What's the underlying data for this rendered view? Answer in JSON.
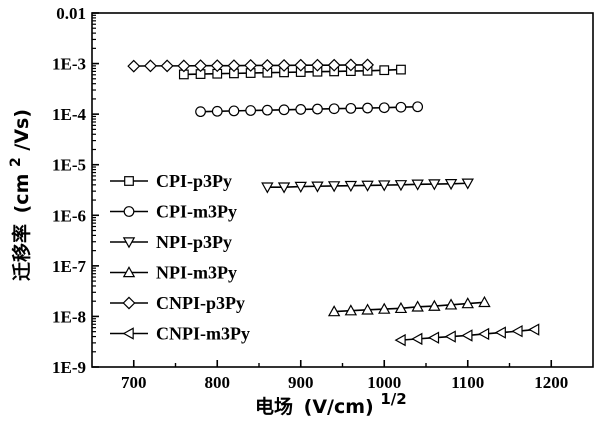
{
  "chart_data": {
    "type": "scatter",
    "title": "",
    "xlabel_prefix": "电场",
    "xlabel_units": "(V/cm)",
    "xlabel_exponent": "1/2",
    "ylabel_prefix": "迁移率",
    "ylabel_units": "(cm",
    "ylabel_exponent": "2",
    "ylabel_suffix": "/Vs)",
    "y_scale": "log",
    "xlim": [
      650,
      1250
    ],
    "ylim": [
      1e-09,
      0.01
    ],
    "x_ticks": [
      700,
      800,
      900,
      1000,
      1100,
      1200
    ],
    "x_tick_labels": [
      "700",
      "800",
      "900",
      "1000",
      "1100",
      "1200"
    ],
    "y_ticks": [
      1e-09,
      1e-08,
      1e-07,
      1e-06,
      1e-05,
      0.0001,
      0.001,
      0.01
    ],
    "y_tick_labels": [
      "1E-9",
      "1E-8",
      "1E-7",
      "1E-6",
      "1E-5",
      "1E-4",
      "1E-3",
      "0.01"
    ],
    "grid": false,
    "legend_position": "left",
    "series": [
      {
        "name": "CPI-p3Py",
        "marker": "square",
        "x": [
          760,
          780,
          800,
          820,
          840,
          860,
          880,
          900,
          920,
          940,
          960,
          980,
          1000,
          1020
        ],
        "y": [
          0.00061,
          0.00062,
          0.00063,
          0.00064,
          0.00065,
          0.00066,
          0.00067,
          0.00068,
          0.00069,
          0.0007,
          0.00071,
          0.00072,
          0.00074,
          0.00076
        ]
      },
      {
        "name": "CPI-m3Py",
        "marker": "circle",
        "x": [
          780,
          800,
          820,
          840,
          860,
          880,
          900,
          920,
          940,
          960,
          980,
          1000,
          1020,
          1040
        ],
        "y": [
          0.000112,
          0.000114,
          0.000116,
          0.000118,
          0.00012,
          0.000122,
          0.000124,
          0.000126,
          0.000128,
          0.00013,
          0.000132,
          0.000134,
          0.000137,
          0.00014
        ]
      },
      {
        "name": "NPI-p3Py",
        "marker": "triangle-down",
        "x": [
          860,
          880,
          900,
          920,
          940,
          960,
          980,
          1000,
          1020,
          1040,
          1060,
          1080,
          1100
        ],
        "y": [
          3.6e-06,
          3.6e-06,
          3.7e-06,
          3.75e-06,
          3.8e-06,
          3.85e-06,
          3.9e-06,
          3.95e-06,
          4e-06,
          4.1e-06,
          4.15e-06,
          4.2e-06,
          4.3e-06
        ]
      },
      {
        "name": "NPI-m3Py",
        "marker": "triangle-up",
        "x": [
          940,
          960,
          980,
          1000,
          1020,
          1040,
          1060,
          1080,
          1100,
          1120
        ],
        "y": [
          1.25e-08,
          1.3e-08,
          1.35e-08,
          1.4e-08,
          1.45e-08,
          1.55e-08,
          1.6e-08,
          1.7e-08,
          1.8e-08,
          1.9e-08
        ]
      },
      {
        "name": "CNPI-p3Py",
        "marker": "diamond",
        "x": [
          700,
          720,
          740,
          760,
          780,
          800,
          820,
          840,
          860,
          880,
          900,
          920,
          940,
          960,
          980
        ],
        "y": [
          0.00089,
          0.0009,
          0.0009,
          0.0009,
          0.00091,
          0.00091,
          0.00091,
          0.00092,
          0.00092,
          0.00092,
          0.00093,
          0.00093,
          0.00093,
          0.00094,
          0.00094
        ]
      },
      {
        "name": "CNPI-m3Py",
        "marker": "triangle-left",
        "x": [
          1020,
          1040,
          1060,
          1080,
          1100,
          1120,
          1140,
          1160,
          1180
        ],
        "y": [
          3.4e-09,
          3.6e-09,
          3.8e-09,
          4e-09,
          4.2e-09,
          4.5e-09,
          4.8e-09,
          5.1e-09,
          5.5e-09
        ]
      }
    ]
  }
}
